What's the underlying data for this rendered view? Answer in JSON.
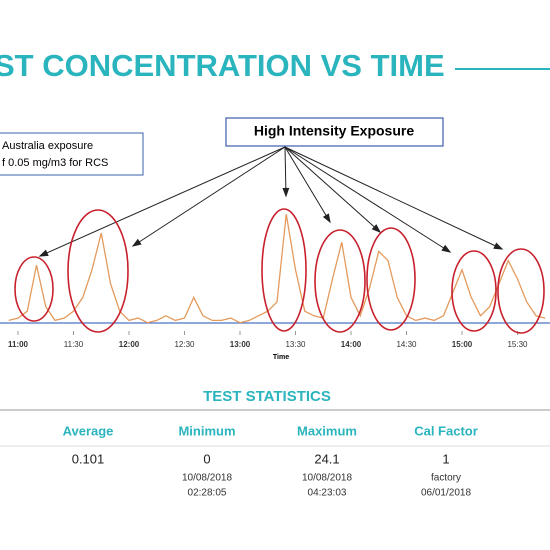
{
  "header": {
    "title": "ST CONCENTRATION VS TIME"
  },
  "note": {
    "lines": [
      "Australia exposure",
      "f 0.05 mg/m3 for RCS"
    ]
  },
  "callout": {
    "text": "High Intensity Exposure"
  },
  "chart_data": {
    "type": "line",
    "x_label": "Time",
    "x": [
      "10:55",
      "11:00",
      "11:05",
      "11:10",
      "11:15",
      "11:20",
      "11:25",
      "11:30",
      "11:35",
      "11:40",
      "11:45",
      "11:50",
      "11:55",
      "12:00",
      "12:05",
      "12:10",
      "12:15",
      "12:20",
      "12:25",
      "12:30",
      "12:35",
      "12:40",
      "12:45",
      "12:50",
      "12:55",
      "13:00",
      "13:05",
      "13:10",
      "13:15",
      "13:20",
      "13:25",
      "13:30",
      "13:35",
      "13:40",
      "13:45",
      "13:50",
      "13:55",
      "14:00",
      "14:05",
      "14:10",
      "14:15",
      "14:20",
      "14:25",
      "14:30",
      "14:35",
      "14:40",
      "14:45",
      "14:50",
      "14:55",
      "15:00",
      "15:05",
      "15:10",
      "15:15",
      "15:20",
      "15:25",
      "15:30",
      "15:35",
      "15:40",
      "15:45"
    ],
    "series": [
      {
        "color": "#e39a5c",
        "values": [
          1,
          1.5,
          3,
          13,
          4,
          1,
          1.5,
          3,
          6,
          12,
          20,
          9,
          3,
          1,
          1.5,
          0.5,
          1,
          2,
          1,
          1.5,
          6,
          2,
          1,
          1,
          1.5,
          0.5,
          1,
          2,
          3,
          5,
          24.1,
          12,
          3,
          2,
          1.5,
          10,
          18,
          6,
          2,
          8,
          16,
          14,
          6,
          2,
          1,
          1.5,
          1,
          2,
          7,
          12,
          6,
          2,
          4,
          9,
          14,
          10,
          5,
          2,
          1.5
        ]
      }
    ],
    "xticks": [
      "11:00",
      "11:30",
      "12:00",
      "12:30",
      "13:00",
      "13:30",
      "14:00",
      "14:30",
      "15:00",
      "15:30"
    ],
    "ylim": [
      0,
      25
    ]
  },
  "stats": {
    "title": "TEST STATISTICS",
    "columns": [
      {
        "header": "Average",
        "value": "0.101",
        "details": []
      },
      {
        "header": "Minimum",
        "value": "0",
        "details": [
          "10/08/2018",
          "02:28:05"
        ]
      },
      {
        "header": "Maximum",
        "value": "24.1",
        "details": [
          "10/08/2018",
          "04:23:03"
        ]
      },
      {
        "header": "Cal Factor",
        "value": "1",
        "details": [
          "factory",
          "06/01/2018"
        ]
      }
    ]
  }
}
